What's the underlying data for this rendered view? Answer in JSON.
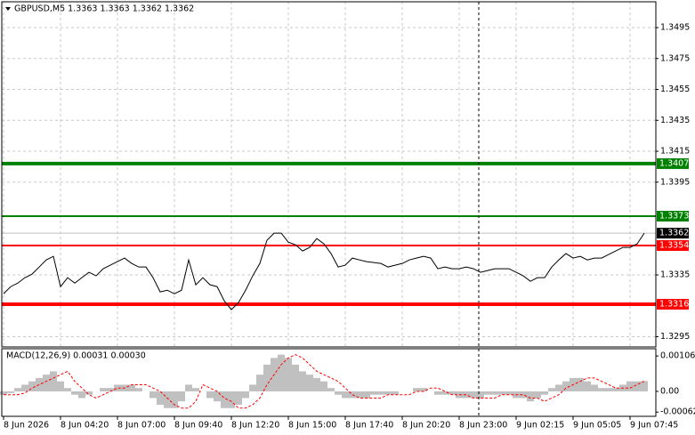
{
  "chart_data": [
    {
      "type": "line",
      "title": "GBPUSD,M5  1.3363 1.3363 1.3362 1.3362",
      "color": "#000000",
      "grid": true,
      "categories": [
        "8 Jun 2026",
        null,
        null,
        null,
        null,
        null,
        null,
        null,
        "8 Jun 04:20",
        null,
        null,
        null,
        null,
        null,
        null,
        null,
        "8 Jun 07:00",
        null,
        null,
        null,
        null,
        null,
        null,
        null,
        "8 Jun 09:40",
        null,
        null,
        null,
        null,
        null,
        null,
        null,
        "8 Jun 12:20",
        null,
        null,
        null,
        null,
        null,
        null,
        null,
        "8 Jun 15:00",
        null,
        null,
        null,
        null,
        null,
        null,
        null,
        "8 Jun 17:40",
        null,
        null,
        null,
        null,
        null,
        null,
        null,
        "8 Jun 20:20",
        null,
        null,
        null,
        null,
        null,
        null,
        null,
        "8 Jun 23:00",
        null,
        null,
        null,
        null,
        null,
        null,
        null,
        "9 Jun 02:15",
        null,
        null,
        null,
        null,
        null,
        null,
        null,
        "9 Jun 05:05",
        null,
        null,
        null,
        null,
        null,
        null,
        null,
        "9 Jun 07:45",
        null,
        null
      ],
      "values": [
        1.33228,
        1.33274,
        1.33297,
        1.33332,
        1.33355,
        1.33401,
        1.33447,
        1.3347,
        1.33274,
        1.33332,
        1.33297,
        1.33332,
        1.33367,
        1.33344,
        1.3339,
        1.33413,
        1.33436,
        1.33459,
        1.33424,
        1.33401,
        1.33401,
        1.33332,
        1.3324,
        1.33251,
        1.33228,
        1.33251,
        1.33447,
        1.33286,
        1.33332,
        1.33286,
        1.33274,
        1.33182,
        1.33125,
        1.33171,
        1.33251,
        1.33344,
        1.33424,
        1.33574,
        1.3362,
        1.3362,
        1.33562,
        1.33545,
        1.33505,
        1.33528,
        1.33585,
        1.33551,
        1.33488,
        1.33401,
        1.33413,
        1.33459,
        1.33447,
        1.33436,
        1.3343,
        1.33424,
        1.33401,
        1.33413,
        1.33424,
        1.33447,
        1.33459,
        1.3347,
        1.33459,
        1.3339,
        1.33401,
        1.3339,
        1.3339,
        1.33401,
        1.3339,
        1.33367,
        1.33378,
        1.3339,
        1.3339,
        1.3339,
        1.33367,
        1.33344,
        1.33309,
        1.33332,
        1.33332,
        1.33401,
        1.33447,
        1.33488,
        1.33459,
        1.3347,
        1.33447,
        1.33459,
        1.33459,
        1.33482,
        1.33505,
        1.33528,
        1.33528,
        1.33551,
        1.3362
      ],
      "ylim": [
        1.32884,
        1.35117
      ],
      "yticks": [
        1.3295,
        1.3335,
        1.3395,
        1.3415,
        1.3435,
        1.3455,
        1.3475,
        1.3495
      ],
      "levels": [
        {
          "value": 1.3407,
          "color": "#008000",
          "width": 4
        },
        {
          "value": 1.3373,
          "color": "#008000",
          "width": 2
        },
        {
          "value": 1.3354,
          "color": "#ff0000",
          "width": 2
        },
        {
          "value": 1.3316,
          "color": "#ff0000",
          "width": 4
        }
      ],
      "last_price": 1.3362
    },
    {
      "type": "macd",
      "title": "MACD(12,26,9) 0.00031 0.00030",
      "series": [
        {
          "color": "#c0c0c0",
          "values": [
            -0.0001,
            -5e-05,
            0.0001,
            0.0002,
            0.0003,
            0.0004,
            0.0005,
            0.0006,
            0.0003,
            0.0001,
            -0.0001,
            -0.0002,
            -0.0001,
            0,
            0.0001,
            0.0001,
            0.0002,
            0.0002,
            0.0002,
            0.0001,
            0,
            -0.0002,
            -0.0004,
            -0.0005,
            -0.0005,
            -0.0003,
            0.0002,
            0.0001,
            0,
            -0.0002,
            -0.0003,
            -0.0005,
            -0.0005,
            -0.0004,
            -0.0002,
            0.0002,
            0.0005,
            0.0008,
            0.001,
            0.0011,
            0.001,
            0.0008,
            0.0006,
            0.0005,
            0.0004,
            0.0003,
            0.0001,
            -0.0001,
            -0.0002,
            -0.0002,
            -0.0002,
            -0.0002,
            -0.0001,
            -0.0001,
            -0.0001,
            -0.0001,
            0,
            0,
            0.0001,
            0.0001,
            0,
            -0.0001,
            -0.0001,
            -0.0001,
            -0.0002,
            -0.0002,
            -0.0002,
            -0.0002,
            -0.0001,
            -0.0001,
            -0.0001,
            -0.0001,
            -0.0002,
            -0.0002,
            -0.0003,
            -0.0002,
            -0.0001,
            0.0001,
            0.0002,
            0.0003,
            0.0004,
            0.0004,
            0.0003,
            0.0002,
            0.0001,
            0.0001,
            0.0001,
            0.0002,
            0.0003,
            0.0003,
            0.00031
          ]
        },
        {
          "color": "#ff0000",
          "values": [
            -0.0001,
            -0.0001,
            -0.0001,
            -5e-05,
            0.0001,
            0.0002,
            0.0003,
            0.0004,
            0.0005,
            0.0006,
            0.0003,
            0.0001,
            -0.0001,
            -0.0002,
            -0.0001,
            0,
            0.0001,
            0.0001,
            0.0002,
            0.0002,
            0.0002,
            0.0001,
            0,
            -0.0002,
            -0.0004,
            -0.0005,
            -0.0005,
            -0.0003,
            0.0002,
            0.0001,
            0,
            -0.0002,
            -0.0003,
            -0.0005,
            -0.0005,
            -0.0004,
            -0.0002,
            0.0002,
            0.0005,
            0.0008,
            0.001,
            0.0011,
            0.001,
            0.0008,
            0.0006,
            0.0005,
            0.0004,
            0.0003,
            0.0001,
            -0.0001,
            -0.0002,
            -0.0002,
            -0.0002,
            -0.0002,
            -0.0001,
            -0.0001,
            -0.0001,
            -0.0001,
            0,
            0,
            0.0001,
            0.0001,
            0,
            -0.0001,
            -0.0001,
            -0.0001,
            -0.0002,
            -0.0002,
            -0.0002,
            -0.0002,
            -0.0001,
            -0.0001,
            -0.0001,
            -0.0001,
            -0.0002,
            -0.0002,
            -0.0003,
            -0.0002,
            -0.0001,
            0.0001,
            0.0002,
            0.0003,
            0.0004,
            0.0004,
            0.0003,
            0.0002,
            0.0001,
            0.0001,
            0.0001,
            0.0002,
            0.0003
          ]
        }
      ],
      "ylim": [
        -0.00072,
        0.00125
      ],
      "yticks": [
        -0.00062,
        {
          "value": 0,
          "label": "0.00"
        },
        0.00106
      ]
    }
  ]
}
